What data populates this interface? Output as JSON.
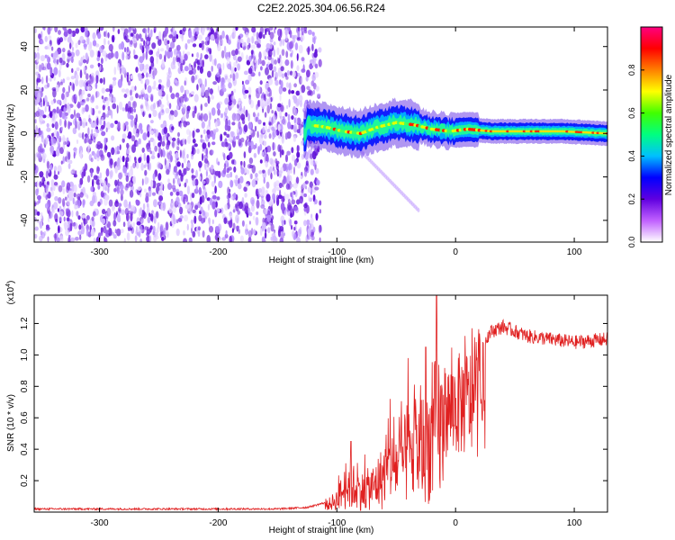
{
  "title": "C2E2.2025.304.06.56.R24",
  "chart_data": [
    {
      "type": "heatmap",
      "name": "spectrogram",
      "xlabel": "Height of straight line (km)",
      "ylabel": "Frequency (Hz)",
      "xlim": [
        -355,
        128
      ],
      "ylim": [
        -50,
        49
      ],
      "xticks": [
        "-300",
        "-200",
        "-100",
        "0",
        "100"
      ],
      "yticks": [
        "40",
        "20",
        "0",
        "-20",
        "-40"
      ],
      "colorbar": {
        "label": "Normalized spectral amplitude",
        "range": [
          0,
          1
        ],
        "ticks": [
          "0.0",
          "0.2",
          "0.4",
          "0.6",
          "0.8"
        ],
        "colors": [
          "#ffffff",
          "#c060ff",
          "#6000e0",
          "#0000ff",
          "#00c0ff",
          "#00ff80",
          "#40ff00",
          "#ffff00",
          "#ff8000",
          "#ff0000",
          "#ff0080"
        ]
      },
      "noise_region_km": [
        -355,
        -120
      ],
      "signal_track": [
        {
          "x": -125,
          "freq": 4
        },
        {
          "x": -110,
          "freq": 3
        },
        {
          "x": -95,
          "freq": 1
        },
        {
          "x": -80,
          "freq": 0
        },
        {
          "x": -65,
          "freq": 3
        },
        {
          "x": -50,
          "freq": 5
        },
        {
          "x": -35,
          "freq": 4
        },
        {
          "x": -20,
          "freq": 2
        },
        {
          "x": -5,
          "freq": 1
        },
        {
          "x": 10,
          "freq": 2
        },
        {
          "x": 30,
          "freq": 1
        },
        {
          "x": 60,
          "freq": 1
        },
        {
          "x": 90,
          "freq": 1
        },
        {
          "x": 128,
          "freq": 0
        }
      ]
    },
    {
      "type": "line",
      "name": "snr",
      "xlabel": "Height of straight line (km)",
      "ylabel": "SNR (10 * v/v)",
      "y_multiplier_label": "(x10",
      "y_multiplier_exponent": "4",
      "y_multiplier_suffix": ")",
      "xlim": [
        -355,
        128
      ],
      "ylim": [
        0,
        1.38
      ],
      "xticks": [
        "-300",
        "-200",
        "-100",
        "0",
        "100"
      ],
      "yticks": [
        "1.2",
        "1.0",
        "0.8",
        "0.6",
        "0.4",
        "0.2"
      ],
      "color": "#e02020",
      "envelope": [
        {
          "x": -355,
          "y": 0.02
        },
        {
          "x": -150,
          "y": 0.02
        },
        {
          "x": -125,
          "y": 0.03
        },
        {
          "x": -110,
          "y": 0.06
        },
        {
          "x": -100,
          "y": 0.15
        },
        {
          "x": -90,
          "y": 0.35
        },
        {
          "x": -80,
          "y": 0.25
        },
        {
          "x": -70,
          "y": 0.3
        },
        {
          "x": -60,
          "y": 0.45
        },
        {
          "x": -50,
          "y": 0.55
        },
        {
          "x": -40,
          "y": 0.65
        },
        {
          "x": -30,
          "y": 0.75
        },
        {
          "x": -20,
          "y": 0.85
        },
        {
          "x": -15,
          "y": 1.1
        },
        {
          "x": -10,
          "y": 0.9
        },
        {
          "x": 0,
          "y": 1.0
        },
        {
          "x": 10,
          "y": 1.05
        },
        {
          "x": 20,
          "y": 1.05
        },
        {
          "x": 30,
          "y": 1.15
        },
        {
          "x": 40,
          "y": 1.18
        },
        {
          "x": 60,
          "y": 1.12
        },
        {
          "x": 80,
          "y": 1.1
        },
        {
          "x": 100,
          "y": 1.08
        },
        {
          "x": 128,
          "y": 1.1
        }
      ],
      "spikes": [
        {
          "x": -16,
          "y": 1.38
        },
        {
          "x": -25,
          "y": 1.05
        },
        {
          "x": -40,
          "y": 0.98
        },
        {
          "x": -55,
          "y": 0.72
        },
        {
          "x": -88,
          "y": 0.45
        }
      ]
    }
  ]
}
